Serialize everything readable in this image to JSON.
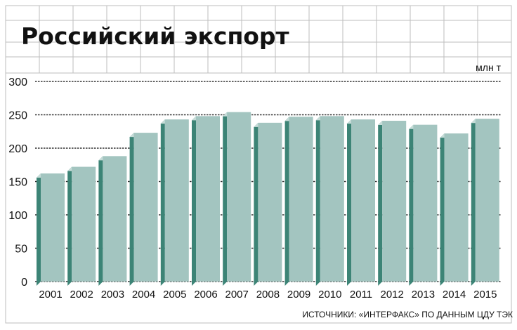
{
  "chart_data": {
    "type": "bar",
    "title": "Российский экспорт",
    "unit": "млн т",
    "source": "ИСТОЧНИКИ: «ИНТЕРФАКС» ПО ДАННЫМ ЦДУ ТЭК",
    "xlabel": "",
    "ylabel": "",
    "ylim": [
      0,
      300
    ],
    "yticks": [
      0,
      50,
      100,
      150,
      200,
      250,
      300
    ],
    "grid": true,
    "categories": [
      "2001",
      "2002",
      "2003",
      "2004",
      "2005",
      "2006",
      "2007",
      "2008",
      "2009",
      "2010",
      "2011",
      "2012",
      "2013",
      "2014",
      "2015"
    ],
    "values": [
      162,
      172,
      188,
      223,
      243,
      248,
      254,
      238,
      247,
      248,
      243,
      241,
      235,
      222,
      244
    ],
    "colors": {
      "bar_front": "#a3c5c0",
      "bar_side": "#3c8476",
      "bar_top": "#c6dcd8",
      "grid": "#333333",
      "frame": "#bdbdbd"
    }
  }
}
